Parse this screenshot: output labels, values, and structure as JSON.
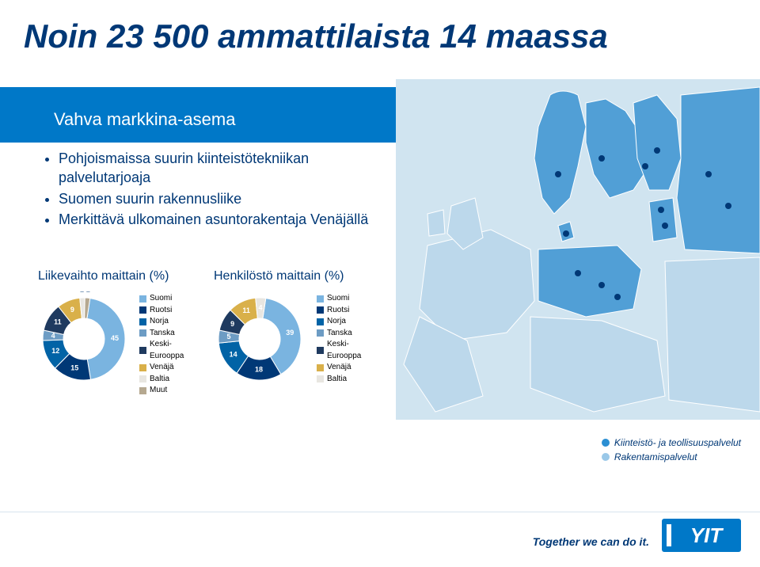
{
  "title": "Noin 23 500 ammattilaista 14 maassa",
  "subtitle": "Vahva markkina-asema",
  "bullets": [
    "Pohjoismaissa suurin kiinteistötekniikan palvelutarjoaja",
    "Suomen suurin rakennusliike",
    "Merkittävä ulkomainen asuntorakentaja Venäjällä"
  ],
  "chart1": {
    "title": "Liikevaihto maittain (%)",
    "type": "donut",
    "slices": [
      {
        "label": "Suomi",
        "value": 45,
        "color": "#7ab4e0"
      },
      {
        "label": "Ruotsi",
        "value": 15,
        "color": "#003876"
      },
      {
        "label": "Norja",
        "value": 12,
        "color": "#0163a6"
      },
      {
        "label": "Tanska",
        "value": 4,
        "color": "#6d9cc4"
      },
      {
        "label": "Keski-Eurooppa",
        "value": 11,
        "color": "#1f3a5f"
      },
      {
        "label": "Venäjä",
        "value": 9,
        "color": "#d9b04a"
      },
      {
        "label": "Baltia",
        "value": 2,
        "color": "#e8e6e1"
      },
      {
        "label": "Muut",
        "value": 2,
        "color": "#b5a890"
      }
    ],
    "legend": [
      "Suomi",
      "Ruotsi",
      "Norja",
      "Tanska",
      "Keski-Eurooppa",
      "Venäjä",
      "Baltia",
      "Muut"
    ],
    "legend_colors": [
      "#7ab4e0",
      "#003876",
      "#0163a6",
      "#6d9cc4",
      "#1f3a5f",
      "#d9b04a",
      "#e8e6e1",
      "#b5a890"
    ]
  },
  "chart2": {
    "title": "Henkilöstö maittain (%)",
    "type": "donut",
    "slices": [
      {
        "label": "Suomi",
        "value": 39,
        "color": "#7ab4e0"
      },
      {
        "label": "Ruotsi",
        "value": 18,
        "color": "#003876"
      },
      {
        "label": "Norja",
        "value": 14,
        "color": "#0163a6"
      },
      {
        "label": "Tanska",
        "value": 5,
        "color": "#6d9cc4"
      },
      {
        "label": "Keski-Eurooppa",
        "value": 9,
        "color": "#1f3a5f"
      },
      {
        "label": "Venäjä",
        "value": 11,
        "color": "#d9b04a"
      },
      {
        "label": "Baltia",
        "value": 4,
        "color": "#e8e6e1"
      }
    ],
    "legend": [
      "Suomi",
      "Ruotsi",
      "Norja",
      "Tanska",
      "Keski-Eurooppa",
      "Venäjä",
      "Baltia"
    ],
    "legend_colors": [
      "#7ab4e0",
      "#003876",
      "#0163a6",
      "#6d9cc4",
      "#1f3a5f",
      "#d9b04a",
      "#e8e6e1"
    ]
  },
  "map_legend": [
    {
      "label": "Kiinteistö- ja teollisuuspalvelut",
      "color": "#2b8fd3"
    },
    {
      "label": "Rakentamispalvelut",
      "color": "#9ac8e8"
    }
  ],
  "map_colors": {
    "sea": "#d0e4f0",
    "land_eu": "#519fd6",
    "land_other": "#bcd8eb",
    "dot": "#003876",
    "border": "#ffffff"
  },
  "footer": {
    "slogan": "Together we can do it.",
    "logo_text": "YIT",
    "logo_bg": "#0078c8",
    "logo_fg": "#ffffff"
  }
}
